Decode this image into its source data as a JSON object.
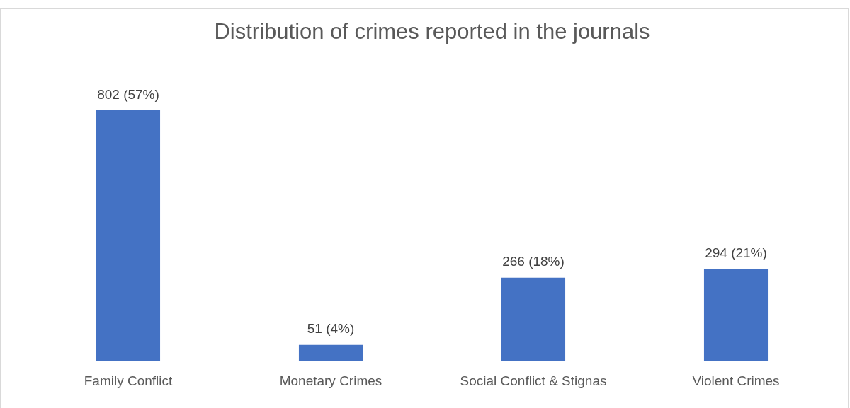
{
  "chart_data": {
    "type": "bar",
    "title": "Distribution of crimes reported in the journals",
    "categories": [
      "Family Conflict",
      "Monetary Crimes",
      "Social Conflict & Stignas",
      "Violent Crimes"
    ],
    "values": [
      802,
      51,
      266,
      294
    ],
    "value_labels": [
      "802 (57%)",
      "51 (4%)",
      "266 (18%)",
      "294 (21%)"
    ],
    "color": "#4472c4",
    "legend": false
  }
}
